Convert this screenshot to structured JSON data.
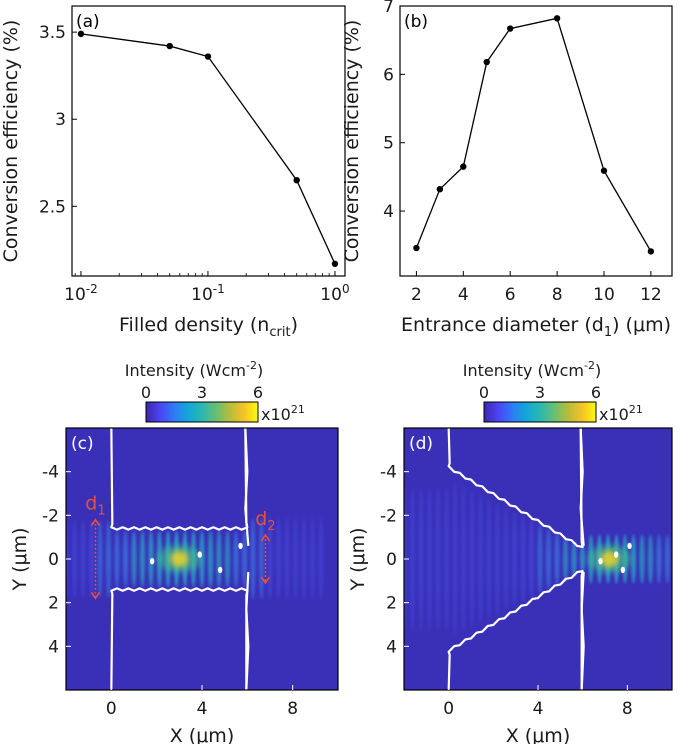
{
  "colors": {
    "line": "#000000",
    "map_bg": "#3a30b8",
    "boundary": "#ffffff",
    "annotation": "#e8503a"
  },
  "colorbar_stops": [
    "#3e26a8",
    "#4a44f5",
    "#2f79f6",
    "#13a6d8",
    "#2ab7b1",
    "#66bf76",
    "#b8bc3a",
    "#f5c229",
    "#f9fb0e"
  ],
  "chart_data": [
    {
      "type": "line",
      "panel_label": "(a)",
      "x": [
        0.01,
        0.05,
        0.1,
        0.5,
        1.0
      ],
      "y": [
        3.49,
        3.42,
        3.36,
        2.65,
        2.17
      ],
      "xscale": "log",
      "xlim": [
        0.0085,
        1.2
      ],
      "ylim": [
        2.1,
        3.65
      ],
      "xticks": [
        {
          "base": "10",
          "exp": "-2",
          "value": 0.01
        },
        {
          "base": "10",
          "exp": "-1",
          "value": 0.1
        },
        {
          "base": "10",
          "exp": "0",
          "value": 1.0
        }
      ],
      "yticks": [
        {
          "label": "2.5",
          "value": 2.5
        },
        {
          "label": "3",
          "value": 3.0
        },
        {
          "label": "3.5",
          "value": 3.5
        }
      ],
      "xlabel": {
        "text": "Filled density (n",
        "sub": "crit",
        "tail": ")"
      },
      "ylabel": "Conversion efficiency (%)",
      "grid": false
    },
    {
      "type": "line",
      "panel_label": "(b)",
      "x": [
        2,
        3,
        4,
        5,
        6,
        8,
        10,
        12
      ],
      "y": [
        3.46,
        4.32,
        4.65,
        6.18,
        6.67,
        6.82,
        4.59,
        3.41
      ],
      "xlim": [
        1.3,
        12.9
      ],
      "ylim": [
        3.05,
        7.0
      ],
      "xticks": [
        {
          "label": "2",
          "value": 2
        },
        {
          "label": "4",
          "value": 4
        },
        {
          "label": "6",
          "value": 6
        },
        {
          "label": "8",
          "value": 8
        },
        {
          "label": "10",
          "value": 10
        },
        {
          "label": "12",
          "value": 12
        }
      ],
      "yticks": [
        {
          "label": "4",
          "value": 4
        },
        {
          "label": "5",
          "value": 5
        },
        {
          "label": "6",
          "value": 6
        },
        {
          "label": "7",
          "value": 7
        }
      ],
      "xlabel": {
        "text": "Entrance diameter (d",
        "sub": "1",
        "tail": ") (μm)"
      },
      "ylabel": "Conversion efficiency (%)",
      "grid": false
    },
    {
      "type": "heatmap",
      "panel_label": "(c)",
      "colorbar": {
        "title": "Intensity (Wcm",
        "title_sup": "-2",
        "title_tail": ")",
        "ticks": [
          {
            "label": "0",
            "value": 0
          },
          {
            "label": "3",
            "value": 3
          },
          {
            "label": "6",
            "value": 6
          }
        ],
        "range": [
          0,
          6
        ],
        "multiplier_base": "x10",
        "multiplier_exp": "21"
      },
      "xlim": [
        -2,
        10
      ],
      "ylim": [
        -6,
        6
      ],
      "xticks": [
        {
          "label": "0",
          "value": 0
        },
        {
          "label": "4",
          "value": 4
        },
        {
          "label": "8",
          "value": 8
        }
      ],
      "yticks": [
        {
          "label": "-4",
          "value": -4
        },
        {
          "label": "-2",
          "value": -2
        },
        {
          "label": "0",
          "value": 0
        },
        {
          "label": "2",
          "value": 2
        },
        {
          "label": "4",
          "value": 4
        }
      ],
      "xlabel": "X (μm)",
      "ylabel": "Y (μm)",
      "peak": {
        "x": 3.0,
        "y": 0.0
      },
      "channel": {
        "x_start": 0,
        "x_end": 6,
        "entrance_halfwidth": 1.4,
        "exit_halfwidth": 1.4
      },
      "annotations": [
        {
          "text": "d",
          "sub": "1",
          "x": -0.7
        },
        {
          "text": "d",
          "sub": "2",
          "x": 6.8
        }
      ]
    },
    {
      "type": "heatmap",
      "panel_label": "(d)",
      "colorbar": {
        "title": "Intensity (Wcm",
        "title_sup": "-2",
        "title_tail": ")",
        "ticks": [
          {
            "label": "0",
            "value": 0
          },
          {
            "label": "3",
            "value": 3
          },
          {
            "label": "6",
            "value": 6
          }
        ],
        "range": [
          0,
          6
        ],
        "multiplier_base": "x10",
        "multiplier_exp": "21"
      },
      "xlim": [
        -2,
        10
      ],
      "ylim": [
        -6,
        6
      ],
      "xticks": [
        {
          "label": "0",
          "value": 0
        },
        {
          "label": "4",
          "value": 4
        },
        {
          "label": "8",
          "value": 8
        }
      ],
      "yticks": [
        {
          "label": "-4",
          "value": -4
        },
        {
          "label": "-2",
          "value": -2
        },
        {
          "label": "0",
          "value": 0
        },
        {
          "label": "2",
          "value": 2
        },
        {
          "label": "4",
          "value": 4
        }
      ],
      "xlabel": "X (μm)",
      "ylabel": "Y (μm)",
      "peak": {
        "x": 7.2,
        "y": 0.0
      },
      "channel": {
        "x_start": 0,
        "x_end": 6,
        "entrance_halfwidth": 4.2,
        "exit_halfwidth": 0.5
      }
    }
  ]
}
